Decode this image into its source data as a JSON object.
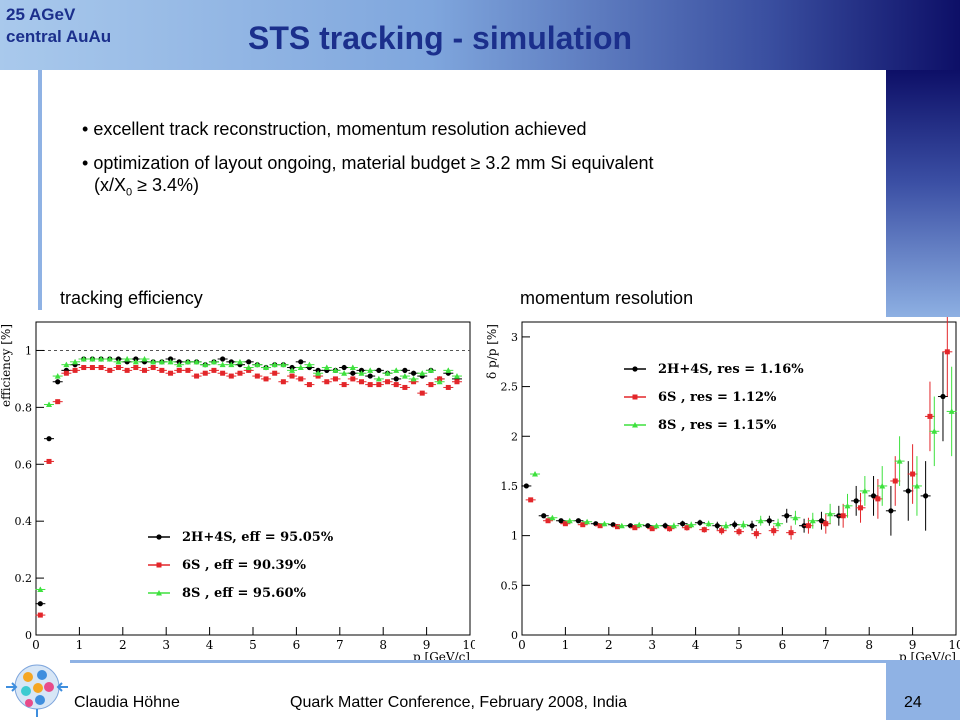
{
  "header": {
    "corner_line1": "25 AGeV",
    "corner_line2": "central AuAu",
    "title": "STS tracking - simulation"
  },
  "bullets": {
    "b1": "excellent track reconstruction, momentum resolution achieved",
    "b2_line1": "optimization of layout ongoing, material budget ≥ 3.2 mm Si equivalent",
    "b2_line2_pre": "(x/X",
    "b2_sub": "0",
    "b2_line2_post": "  ≥ 3.4%)"
  },
  "labels": {
    "left": "tracking efficiency",
    "right": "momentum resolution"
  },
  "footer": {
    "author": "Claudia Höhne",
    "conference": "Quark Matter Conference, February 2008, India",
    "page": "24"
  },
  "colors": {
    "black": "#000000",
    "red": "#e3262a",
    "green": "#3ee13e"
  },
  "chart_data": [
    {
      "type": "scatter",
      "ylabel": "efficiency [%]",
      "xlabel": "p [GeV/c]",
      "xlim": [
        0,
        10
      ],
      "ylim": [
        0,
        1.1
      ],
      "xticks": [
        0,
        1,
        2,
        3,
        4,
        5,
        6,
        7,
        8,
        9,
        10
      ],
      "yticks": [
        0,
        0.2,
        0.4,
        0.6,
        0.8,
        1
      ],
      "reference_line": 1,
      "legend_position": "bottom-center",
      "series": [
        {
          "name": "2H+4S",
          "legend": "2H+4S, eff = 95.05%",
          "color": "#000000",
          "marker": "circle",
          "x": [
            0.1,
            0.3,
            0.5,
            0.7,
            0.9,
            1.1,
            1.3,
            1.5,
            1.7,
            1.9,
            2.1,
            2.3,
            2.5,
            2.7,
            2.9,
            3.1,
            3.3,
            3.5,
            3.7,
            3.9,
            4.1,
            4.3,
            4.5,
            4.7,
            4.9,
            5.1,
            5.3,
            5.5,
            5.7,
            5.9,
            6.1,
            6.3,
            6.5,
            6.7,
            6.9,
            7.1,
            7.3,
            7.5,
            7.7,
            7.9,
            8.1,
            8.3,
            8.5,
            8.7,
            8.9,
            9.1,
            9.3,
            9.5,
            9.7
          ],
          "y": [
            0.11,
            0.69,
            0.89,
            0.93,
            0.95,
            0.97,
            0.97,
            0.97,
            0.97,
            0.97,
            0.96,
            0.97,
            0.96,
            0.96,
            0.96,
            0.97,
            0.96,
            0.96,
            0.96,
            0.95,
            0.96,
            0.97,
            0.96,
            0.95,
            0.96,
            0.95,
            0.94,
            0.95,
            0.95,
            0.94,
            0.96,
            0.94,
            0.93,
            0.93,
            0.93,
            0.94,
            0.92,
            0.93,
            0.91,
            0.93,
            0.92,
            0.9,
            0.93,
            0.92,
            0.91,
            0.93,
            0.9,
            0.92,
            0.9
          ]
        },
        {
          "name": "6S",
          "legend": "6S      , eff = 90.39%",
          "color": "#e3262a",
          "marker": "square",
          "x": [
            0.1,
            0.3,
            0.5,
            0.7,
            0.9,
            1.1,
            1.3,
            1.5,
            1.7,
            1.9,
            2.1,
            2.3,
            2.5,
            2.7,
            2.9,
            3.1,
            3.3,
            3.5,
            3.7,
            3.9,
            4.1,
            4.3,
            4.5,
            4.7,
            4.9,
            5.1,
            5.3,
            5.5,
            5.7,
            5.9,
            6.1,
            6.3,
            6.5,
            6.7,
            6.9,
            7.1,
            7.3,
            7.5,
            7.7,
            7.9,
            8.1,
            8.3,
            8.5,
            8.7,
            8.9,
            9.1,
            9.3,
            9.5,
            9.7
          ],
          "y": [
            0.07,
            0.61,
            0.82,
            0.92,
            0.93,
            0.94,
            0.94,
            0.94,
            0.93,
            0.94,
            0.93,
            0.94,
            0.93,
            0.94,
            0.93,
            0.92,
            0.93,
            0.93,
            0.91,
            0.92,
            0.93,
            0.92,
            0.91,
            0.92,
            0.93,
            0.91,
            0.9,
            0.92,
            0.89,
            0.91,
            0.9,
            0.88,
            0.91,
            0.89,
            0.9,
            0.88,
            0.9,
            0.89,
            0.88,
            0.88,
            0.89,
            0.88,
            0.87,
            0.89,
            0.85,
            0.88,
            0.9,
            0.87,
            0.89
          ]
        },
        {
          "name": "8S",
          "legend": "8S      , eff = 95.60%",
          "color": "#3ee13e",
          "marker": "triangle",
          "x": [
            0.1,
            0.3,
            0.5,
            0.7,
            0.9,
            1.1,
            1.3,
            1.5,
            1.7,
            1.9,
            2.1,
            2.3,
            2.5,
            2.7,
            2.9,
            3.1,
            3.3,
            3.5,
            3.7,
            3.9,
            4.1,
            4.3,
            4.5,
            4.7,
            4.9,
            5.1,
            5.3,
            5.5,
            5.7,
            5.9,
            6.1,
            6.3,
            6.5,
            6.7,
            6.9,
            7.1,
            7.3,
            7.5,
            7.7,
            7.9,
            8.1,
            8.3,
            8.5,
            8.7,
            8.9,
            9.1,
            9.3,
            9.5,
            9.7
          ],
          "y": [
            0.16,
            0.81,
            0.91,
            0.95,
            0.96,
            0.97,
            0.97,
            0.97,
            0.97,
            0.96,
            0.97,
            0.96,
            0.97,
            0.96,
            0.96,
            0.96,
            0.95,
            0.96,
            0.96,
            0.95,
            0.96,
            0.95,
            0.95,
            0.96,
            0.94,
            0.95,
            0.94,
            0.95,
            0.95,
            0.93,
            0.94,
            0.95,
            0.92,
            0.94,
            0.93,
            0.92,
            0.94,
            0.92,
            0.93,
            0.9,
            0.92,
            0.93,
            0.91,
            0.9,
            0.92,
            0.93,
            0.89,
            0.93,
            0.91
          ]
        }
      ]
    },
    {
      "type": "scatter",
      "ylabel": "δ p/p [%]",
      "xlabel": "p [GeV/c]",
      "xlim": [
        0,
        10
      ],
      "ylim": [
        0,
        3.15
      ],
      "xticks": [
        0,
        1,
        2,
        3,
        4,
        5,
        6,
        7,
        8,
        9,
        10
      ],
      "yticks": [
        0,
        0.5,
        1,
        1.5,
        2,
        2.5,
        3
      ],
      "legend_position": "top-center",
      "series": [
        {
          "name": "2H+4S",
          "legend": "2H+4S, res = 1.16%",
          "color": "#000000",
          "marker": "circle",
          "x": [
            0.1,
            0.5,
            0.9,
            1.3,
            1.7,
            2.1,
            2.5,
            2.9,
            3.3,
            3.7,
            4.1,
            4.5,
            4.9,
            5.3,
            5.7,
            6.1,
            6.5,
            6.9,
            7.3,
            7.7,
            8.1,
            8.5,
            8.9,
            9.3,
            9.7
          ],
          "y": [
            1.5,
            1.2,
            1.15,
            1.15,
            1.12,
            1.11,
            1.1,
            1.1,
            1.1,
            1.12,
            1.13,
            1.1,
            1.11,
            1.1,
            1.15,
            1.2,
            1.1,
            1.15,
            1.2,
            1.35,
            1.4,
            1.25,
            1.45,
            1.4,
            2.4
          ],
          "err": [
            0.02,
            0.02,
            0.02,
            0.02,
            0.02,
            0.02,
            0.02,
            0.02,
            0.03,
            0.03,
            0.03,
            0.04,
            0.04,
            0.05,
            0.05,
            0.07,
            0.07,
            0.09,
            0.1,
            0.15,
            0.2,
            0.25,
            0.3,
            0.35,
            0.45
          ]
        },
        {
          "name": "6S",
          "legend": "6S      , res = 1.12%",
          "color": "#e3262a",
          "marker": "square",
          "x": [
            0.2,
            0.6,
            1.0,
            1.4,
            1.8,
            2.2,
            2.6,
            3.0,
            3.4,
            3.8,
            4.2,
            4.6,
            5.0,
            5.4,
            5.8,
            6.2,
            6.6,
            7.0,
            7.4,
            7.8,
            8.2,
            8.6,
            9.0,
            9.4,
            9.8
          ],
          "y": [
            1.36,
            1.15,
            1.12,
            1.11,
            1.1,
            1.09,
            1.08,
            1.07,
            1.07,
            1.08,
            1.06,
            1.05,
            1.04,
            1.02,
            1.05,
            1.03,
            1.1,
            1.12,
            1.2,
            1.28,
            1.37,
            1.55,
            1.62,
            2.2,
            2.85
          ],
          "err": [
            0.02,
            0.02,
            0.02,
            0.02,
            0.02,
            0.02,
            0.02,
            0.02,
            0.03,
            0.03,
            0.03,
            0.04,
            0.04,
            0.05,
            0.05,
            0.07,
            0.08,
            0.1,
            0.12,
            0.15,
            0.2,
            0.25,
            0.3,
            0.35,
            0.45
          ]
        },
        {
          "name": "8S",
          "legend": "8S      , res = 1.15%",
          "color": "#3ee13e",
          "marker": "triangle",
          "x": [
            0.3,
            0.7,
            1.1,
            1.5,
            1.9,
            2.3,
            2.7,
            3.1,
            3.5,
            3.9,
            4.3,
            4.7,
            5.1,
            5.5,
            5.9,
            6.3,
            6.7,
            7.1,
            7.5,
            7.9,
            8.3,
            8.7,
            9.1,
            9.5,
            9.9
          ],
          "y": [
            1.62,
            1.18,
            1.15,
            1.14,
            1.12,
            1.1,
            1.11,
            1.1,
            1.1,
            1.11,
            1.12,
            1.1,
            1.11,
            1.15,
            1.12,
            1.18,
            1.15,
            1.22,
            1.3,
            1.45,
            1.5,
            1.75,
            1.5,
            2.05,
            2.25
          ],
          "err": [
            0.02,
            0.02,
            0.02,
            0.02,
            0.02,
            0.02,
            0.02,
            0.02,
            0.03,
            0.03,
            0.03,
            0.04,
            0.04,
            0.05,
            0.05,
            0.07,
            0.08,
            0.1,
            0.12,
            0.15,
            0.2,
            0.25,
            0.3,
            0.35,
            0.45
          ]
        }
      ]
    }
  ]
}
